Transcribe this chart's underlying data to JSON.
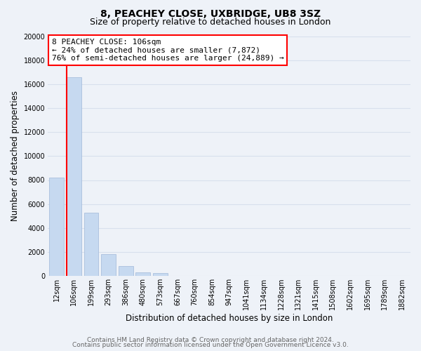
{
  "title": "8, PEACHEY CLOSE, UXBRIDGE, UB8 3SZ",
  "subtitle": "Size of property relative to detached houses in London",
  "xlabel": "Distribution of detached houses by size in London",
  "ylabel": "Number of detached properties",
  "bar_labels": [
    "12sqm",
    "106sqm",
    "199sqm",
    "293sqm",
    "386sqm",
    "480sqm",
    "573sqm",
    "667sqm",
    "760sqm",
    "854sqm",
    "947sqm",
    "1041sqm",
    "1134sqm",
    "1228sqm",
    "1321sqm",
    "1415sqm",
    "1508sqm",
    "1602sqm",
    "1695sqm",
    "1789sqm",
    "1882sqm"
  ],
  "bar_values": [
    8200,
    16600,
    5300,
    1850,
    800,
    300,
    250,
    0,
    0,
    0,
    0,
    0,
    0,
    0,
    0,
    0,
    0,
    0,
    0,
    0,
    0
  ],
  "bar_color": "#c6d9f0",
  "annotation_line1": "8 PEACHEY CLOSE: 106sqm",
  "annotation_line2": "← 24% of detached houses are smaller (7,872)",
  "annotation_line3": "76% of semi-detached houses are larger (24,889) →",
  "ylim": [
    0,
    20000
  ],
  "yticks": [
    0,
    2000,
    4000,
    6000,
    8000,
    10000,
    12000,
    14000,
    16000,
    18000,
    20000
  ],
  "vline_bar_index": 1,
  "footer_line1": "Contains HM Land Registry data © Crown copyright and database right 2024.",
  "footer_line2": "Contains public sector information licensed under the Open Government Licence v3.0.",
  "background_color": "#eef2f8",
  "grid_color": "#d8e0ed",
  "title_fontsize": 10,
  "subtitle_fontsize": 9,
  "axis_label_fontsize": 8.5,
  "tick_fontsize": 7,
  "footer_fontsize": 6.5,
  "annotation_fontsize": 8
}
